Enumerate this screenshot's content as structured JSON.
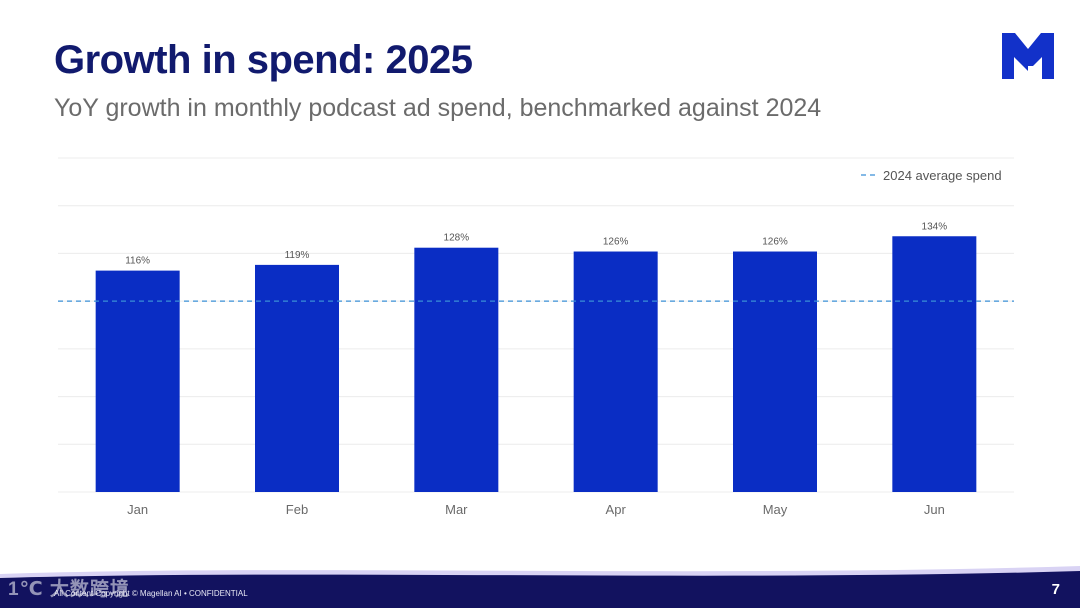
{
  "slide": {
    "title": "Growth in spend: 2025",
    "subtitle": "YoY growth in monthly podcast ad spend, benchmarked against 2024",
    "footer": "All Content Copyright © Magellan AI • CONFIDENTIAL",
    "page_number": "7",
    "watermark": "1℃ 大数跨境",
    "brand_color": "#1231c9",
    "title_color": "#111a6e",
    "footer_color": "#12125f"
  },
  "chart_data": {
    "type": "bar",
    "categories": [
      "Jan",
      "Feb",
      "Mar",
      "Apr",
      "May",
      "Jun"
    ],
    "values": [
      116,
      119,
      128,
      126,
      126,
      134
    ],
    "data_labels": [
      "116%",
      "119%",
      "128%",
      "126%",
      "126%",
      "134%"
    ],
    "ylim": [
      0,
      175
    ],
    "baseline": {
      "value": 100,
      "label": "2024 average spend",
      "color": "#3a8fd6",
      "style": "dashed"
    },
    "bar_color": "#0a2dc4",
    "grid": true,
    "legend_position": "top-right",
    "title": "",
    "xlabel": "",
    "ylabel": ""
  }
}
